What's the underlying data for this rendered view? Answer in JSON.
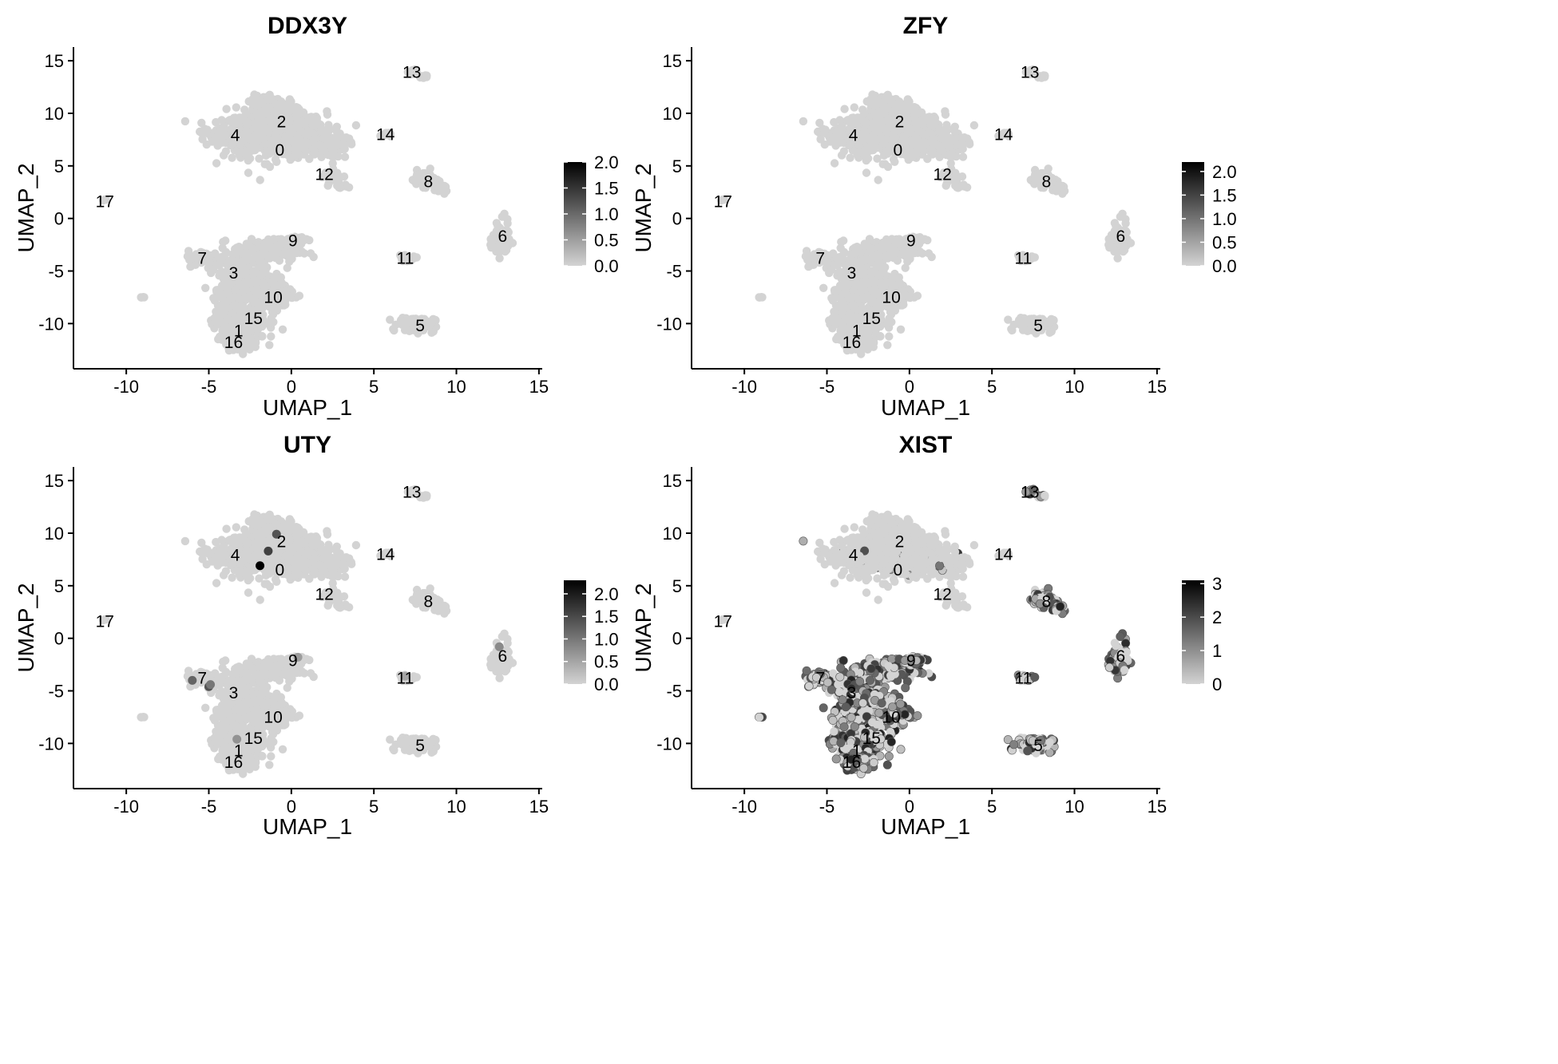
{
  "chart_data": [
    {
      "type": "scatter",
      "title": "DDX3Y",
      "xlabel": "UMAP_1",
      "ylabel": "UMAP_2",
      "xlim": [
        -13.2,
        15.2
      ],
      "ylim": [
        -14.3,
        16.3
      ],
      "xticks": [
        "-10",
        "-5",
        "0",
        "5",
        "10",
        "15"
      ],
      "yticks": [
        "15",
        "10",
        "5",
        "0",
        "-5",
        "-10"
      ],
      "color_scale": {
        "low": "#d3d3d3",
        "high": "#000000",
        "min": 0,
        "max": 2.0,
        "labels": [
          "2.0",
          "1.5",
          "1.0",
          "0.5",
          "0.0"
        ]
      },
      "expression_level": "none",
      "highlight_points": []
    },
    {
      "type": "scatter",
      "title": "ZFY",
      "xlabel": "UMAP_1",
      "ylabel": "UMAP_2",
      "xlim": [
        -13.2,
        15.2
      ],
      "ylim": [
        -14.3,
        16.3
      ],
      "xticks": [
        "-10",
        "-5",
        "0",
        "5",
        "10",
        "15"
      ],
      "yticks": [
        "15",
        "10",
        "5",
        "0",
        "-5",
        "-10"
      ],
      "color_scale": {
        "low": "#d3d3d3",
        "high": "#000000",
        "min": 0,
        "max": 2.2,
        "labels": [
          "2.0",
          "1.5",
          "1.0",
          "0.5",
          "0.0"
        ]
      },
      "expression_level": "none",
      "highlight_points": []
    },
    {
      "type": "scatter",
      "title": "UTY",
      "xlabel": "UMAP_1",
      "ylabel": "UMAP_2",
      "xlim": [
        -13.2,
        15.2
      ],
      "ylim": [
        -14.3,
        16.3
      ],
      "xticks": [
        "-10",
        "-5",
        "0",
        "5",
        "10",
        "15"
      ],
      "yticks": [
        "15",
        "10",
        "5",
        "0",
        "-5",
        "-10"
      ],
      "color_scale": {
        "low": "#d3d3d3",
        "high": "#000000",
        "min": 0,
        "max": 2.3,
        "labels": [
          "2.0",
          "1.5",
          "1.0",
          "0.5",
          "0.0"
        ]
      },
      "expression_level": "sparse",
      "highlight_points": [
        {
          "x": -1.9,
          "y": 6.9,
          "value": 2.3
        },
        {
          "x": -1.4,
          "y": 8.3,
          "value": 1.6
        },
        {
          "x": -0.9,
          "y": 9.9,
          "value": 1.4
        },
        {
          "x": -6.0,
          "y": -4.0,
          "value": 1.2
        },
        {
          "x": -5.0,
          "y": -4.6,
          "value": 1.4
        },
        {
          "x": -4.9,
          "y": -4.4,
          "value": 1.0
        },
        {
          "x": 12.6,
          "y": -0.8,
          "value": 0.8
        },
        {
          "x": 0.4,
          "y": -1.8,
          "value": 0.6
        },
        {
          "x": -3.3,
          "y": -9.6,
          "value": 0.7
        },
        {
          "x": 6.9,
          "y": -3.6,
          "value": 0.5
        }
      ]
    },
    {
      "type": "scatter",
      "title": "XIST",
      "xlabel": "UMAP_1",
      "ylabel": "UMAP_2",
      "xlim": [
        -13.2,
        15.2
      ],
      "ylim": [
        -14.3,
        16.3
      ],
      "xticks": [
        "-10",
        "-5",
        "0",
        "5",
        "10",
        "15"
      ],
      "yticks": [
        "15",
        "10",
        "5",
        "0",
        "-5",
        "-10"
      ],
      "color_scale": {
        "low": "#d3d3d3",
        "high": "#000000",
        "min": 0,
        "max": 3.1,
        "labels": [
          "3",
          "2",
          "1",
          "0"
        ]
      },
      "expression_level": "broad",
      "highlight_points": []
    }
  ],
  "clusters": [
    {
      "label": "0",
      "x": -0.7,
      "y": 6.5
    },
    {
      "label": "1",
      "x": -3.2,
      "y": -10.7
    },
    {
      "label": "2",
      "x": -0.6,
      "y": 9.2
    },
    {
      "label": "3",
      "x": -3.5,
      "y": -5.2
    },
    {
      "label": "4",
      "x": -3.4,
      "y": 7.9
    },
    {
      "label": "5",
      "x": 7.8,
      "y": -10.2
    },
    {
      "label": "6",
      "x": 12.8,
      "y": -1.7
    },
    {
      "label": "7",
      "x": -5.4,
      "y": -3.8
    },
    {
      "label": "8",
      "x": 8.3,
      "y": 3.5
    },
    {
      "label": "9",
      "x": 0.1,
      "y": -2.1
    },
    {
      "label": "10",
      "x": -1.1,
      "y": -7.5
    },
    {
      "label": "11",
      "x": 6.9,
      "y": -3.8
    },
    {
      "label": "12",
      "x": 2.0,
      "y": 4.2
    },
    {
      "label": "13",
      "x": 7.3,
      "y": 13.9
    },
    {
      "label": "14",
      "x": 5.7,
      "y": 8.0
    },
    {
      "label": "15",
      "x": -2.3,
      "y": -9.5
    },
    {
      "label": "16",
      "x": -3.5,
      "y": -11.8
    },
    {
      "label": "17",
      "x": -11.3,
      "y": 1.6
    }
  ]
}
